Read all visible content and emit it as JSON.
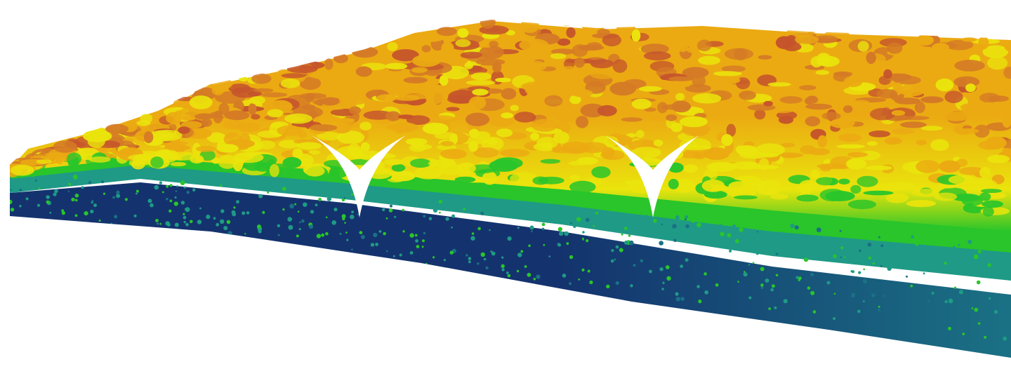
{
  "scene": {
    "subject": "lidar-point-cloud-forest-canopy",
    "palette": {
      "ground": "#14336e",
      "ground_far": "#1a7184",
      "understory": "#1f9a86",
      "low_vegetation": "#29c52a",
      "mid_canopy": "#eae40c",
      "canopy": "#ebaa12",
      "canopy_top": "#d47a26",
      "canopy_peak": "#c5542c",
      "marker": "#ffffff"
    },
    "markers": [
      {
        "name": "tree-marker-left-icon"
      },
      {
        "name": "tree-marker-right-icon"
      }
    ]
  }
}
